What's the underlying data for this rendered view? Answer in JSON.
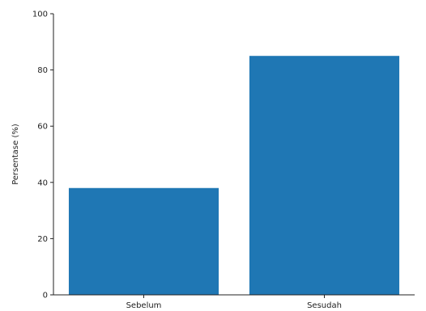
{
  "chart_data": {
    "type": "bar",
    "title": "",
    "xlabel": "",
    "ylabel": "Persentase (%)",
    "categories": [
      "Sebelum",
      "Sesudah"
    ],
    "values": [
      38,
      85
    ],
    "ylim": [
      0,
      100
    ],
    "yticks": [
      0,
      20,
      40,
      60,
      80,
      100
    ],
    "grid": false,
    "bar_color": "#1f77b4"
  }
}
